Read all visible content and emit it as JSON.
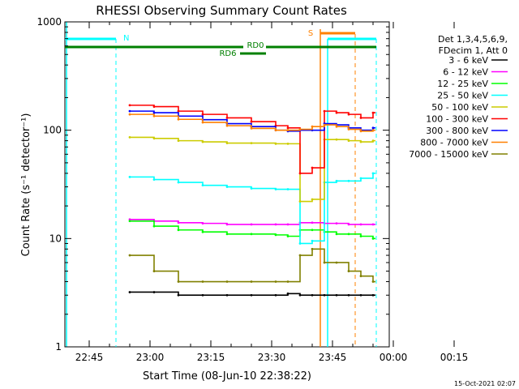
{
  "chart_data": {
    "type": "line",
    "title": "RHESSI Observing Summary Count Rates",
    "xlabel": "Start Time (08-Jun-10 22:38:22)",
    "ylabel": "Count Rate (s⁻¹ detector⁻¹)",
    "ylog": true,
    "ylim": [
      1,
      1000
    ],
    "xlim_minutes": [
      -6,
      74
    ],
    "x_tick_labels": [
      "22:45",
      "23:00",
      "23:15",
      "23:30",
      "23:45",
      "00:00",
      "00:15"
    ],
    "x_tick_minutes": [
      0,
      15,
      30,
      45,
      60,
      75,
      90
    ],
    "y_tick_labels": [
      "1",
      "10",
      "100",
      "1000"
    ],
    "y_tick_values": [
      1,
      10,
      100,
      1000
    ],
    "legend_header": [
      "Det 1,3,4,5,6,9,",
      "FDecim 1, Att 0"
    ],
    "legend_placement": "right",
    "timestamp": "15-Oct-2021 02:07",
    "flags": [
      {
        "label": "N",
        "color": "#00ffff"
      },
      {
        "label": "RD0",
        "color": "#008000"
      },
      {
        "label": "RD6",
        "color": "#008000"
      },
      {
        "label": "S",
        "color": "#ff8000"
      }
    ],
    "x_minutes": [
      10,
      16,
      22,
      28,
      34,
      40,
      46,
      49,
      52,
      55,
      58,
      61,
      64,
      67,
      70
    ],
    "series": [
      {
        "name": "3 - 6 keV",
        "color": "#000000",
        "values": [
          3.2,
          3.2,
          3.0,
          3.0,
          3.0,
          3.0,
          3.0,
          3.1,
          3.0,
          3.0,
          3.0,
          3.0,
          3.0,
          3.0,
          3.0
        ]
      },
      {
        "name": "6 - 12 keV",
        "color": "#ff00ff",
        "values": [
          15.0,
          14.5,
          14.0,
          13.8,
          13.5,
          13.5,
          13.5,
          13.5,
          14.0,
          14.0,
          13.8,
          13.8,
          13.5,
          13.5,
          13.5
        ]
      },
      {
        "name": "12 - 25 keV",
        "color": "#00ff00",
        "values": [
          14.5,
          13.0,
          12.0,
          11.5,
          11.0,
          11.0,
          10.8,
          10.5,
          12.0,
          12.0,
          11.5,
          11.0,
          11.0,
          10.5,
          10.0
        ]
      },
      {
        "name": "25 - 50 keV",
        "color": "#00ffff",
        "values": [
          37.0,
          35.0,
          33.0,
          31.0,
          30.0,
          29.0,
          28.5,
          28.5,
          9.0,
          9.5,
          33.0,
          34.0,
          34.0,
          36.0,
          40.0
        ]
      },
      {
        "name": "50 - 100 keV",
        "color": "#cccc00",
        "values": [
          86.0,
          84.0,
          80.0,
          78.0,
          76.0,
          76.0,
          75.0,
          75.0,
          22.0,
          23.0,
          82.0,
          82.0,
          80.0,
          78.0,
          80.0
        ]
      },
      {
        "name": "100 - 300 keV",
        "color": "#ff0000",
        "values": [
          170.0,
          165.0,
          150.0,
          140.0,
          130.0,
          120.0,
          110.0,
          105.0,
          40.0,
          45.0,
          150.0,
          145.0,
          140.0,
          130.0,
          145.0
        ]
      },
      {
        "name": "300 - 800 keV",
        "color": "#0000ff",
        "values": [
          150.0,
          145.0,
          135.0,
          125.0,
          115.0,
          108.0,
          100.0,
          98.0,
          100.0,
          100.0,
          115.0,
          112.0,
          105.0,
          100.0,
          105.0
        ]
      },
      {
        "name": "800 - 7000 keV",
        "color": "#ff8000",
        "values": [
          140.0,
          135.0,
          126.0,
          118.0,
          110.0,
          104.0,
          100.0,
          100.0,
          102.0,
          108.0,
          112.0,
          108.0,
          102.0,
          98.0,
          100.0
        ]
      },
      {
        "name": "7000 - 15000 keV",
        "color": "#808000",
        "values": [
          7.0,
          5.0,
          4.0,
          4.0,
          4.0,
          4.0,
          4.0,
          4.0,
          7.0,
          8.0,
          6.0,
          6.0,
          5.0,
          4.5,
          4.0
        ]
      }
    ]
  }
}
